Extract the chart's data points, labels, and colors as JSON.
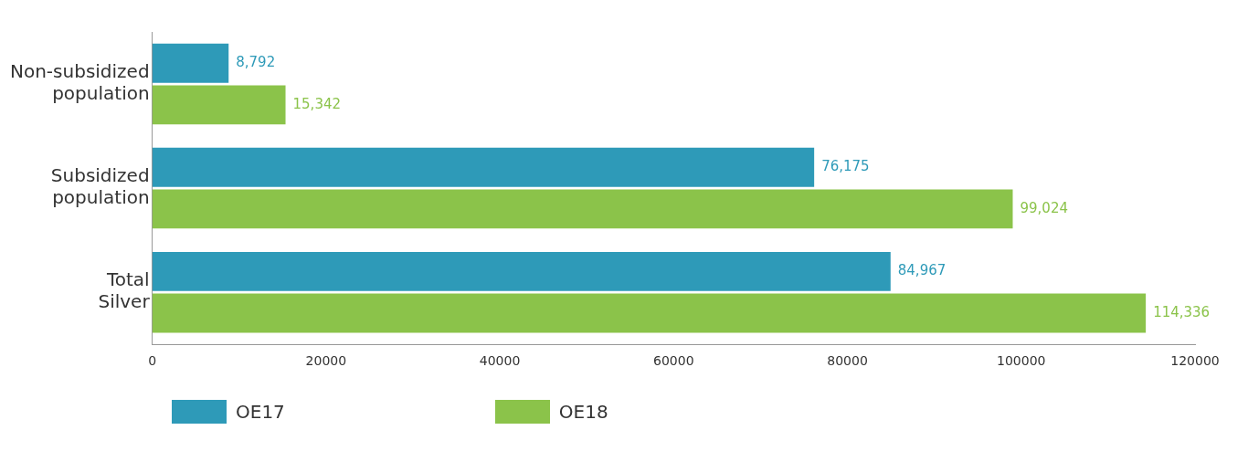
{
  "chart_data": {
    "type": "bar",
    "orientation": "horizontal",
    "categories": [
      "Non-subsidized population",
      "Subsidized population",
      "Total Silver"
    ],
    "series": [
      {
        "name": "OE17",
        "color": "#2e9ab8",
        "values": [
          8792,
          76175,
          84967
        ],
        "value_labels": [
          "8,792",
          "76,175",
          "84,967"
        ]
      },
      {
        "name": "OE18",
        "color": "#8bc34a",
        "values": [
          15342,
          99024,
          114336
        ],
        "value_labels": [
          "15,342",
          "99,024",
          "114,336"
        ]
      }
    ],
    "xlim": [
      0,
      120000
    ],
    "xticks": [
      0,
      20000,
      40000,
      60000,
      80000,
      100000,
      120000
    ],
    "grid": false,
    "legend": "bottom"
  }
}
